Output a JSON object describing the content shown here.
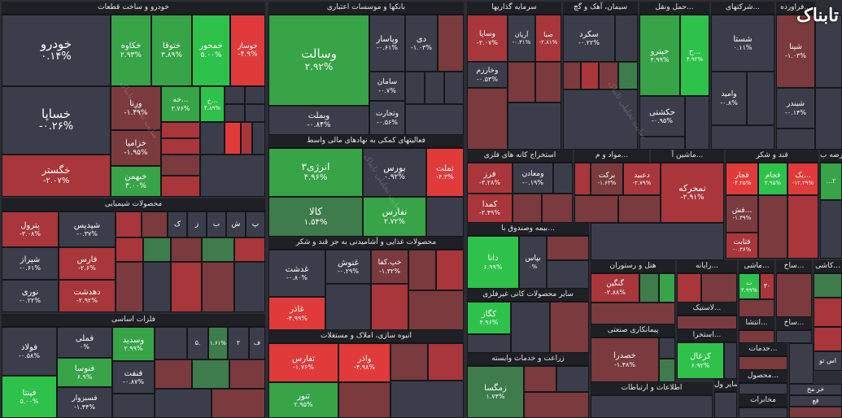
{
  "logo_text": "تابناک",
  "watermark": "سایت تحلیلی تابناک",
  "sectors": [
    {
      "id": "auto",
      "label": "خودرو و ساخت قطعات"
    },
    {
      "id": "banks",
      "label": "بانکها و موسسات اعتباری"
    },
    {
      "id": "invest",
      "label": "سرمایه گذاریها"
    },
    {
      "id": "cement",
      "label": "سیمان، آهک و گچ"
    },
    {
      "id": "transport",
      "label": "حمل ونقل..."
    },
    {
      "id": "holding",
      "label": "شرکتهای..."
    },
    {
      "id": "pharma",
      "label": "فراورده..."
    },
    {
      "id": "chem",
      "label": "محصولات شیمیایی"
    },
    {
      "id": "finaux",
      "label": "فعالیتهای کمکی به نهادهای مالی واسط"
    },
    {
      "id": "mining",
      "label": "استخراج کانه های فلزی"
    },
    {
      "id": "materials",
      "label": "مواد و م..."
    },
    {
      "id": "machinery",
      "label": "ماشین آ..."
    },
    {
      "id": "sugar",
      "label": "قند و شکر"
    },
    {
      "id": "supply",
      "label": "عرضه ب..."
    },
    {
      "id": "insurance",
      "label": "بیمه وصندوق با..."
    },
    {
      "id": "food",
      "label": "محصولات غذایی و آشامیدنی به جز قند و شکر"
    },
    {
      "id": "hotel",
      "label": "هتل و رستوران"
    },
    {
      "id": "it",
      "label": "رایانه..."
    },
    {
      "id": "machine2",
      "label": "ماشی..."
    },
    {
      "id": "build",
      "label": "ساخ..."
    },
    {
      "id": "kashi",
      "label": "کاشی..."
    },
    {
      "id": "basemetal",
      "label": "فلزات اساسی"
    },
    {
      "id": "nonmetal",
      "label": "سایر محصولات کانی غیرفلزی"
    },
    {
      "id": "contract",
      "label": "پیمانکاری صنعتی"
    },
    {
      "id": "tire",
      "label": "لاستیک..."
    },
    {
      "id": "misc1",
      "label": "انتشا..."
    },
    {
      "id": "misc2",
      "label": "ساخ..."
    },
    {
      "id": "realestate",
      "label": "انبوه سازی، املاک و مستغلات"
    },
    {
      "id": "agri",
      "label": "زراعت و خدمات وابسته"
    },
    {
      "id": "trade",
      "label": "استخرا..."
    },
    {
      "id": "services",
      "label": "خدمات..."
    },
    {
      "id": "products",
      "label": "محصول..."
    },
    {
      "id": "telecom",
      "label": "اطلاعات و ارتباطات"
    },
    {
      "id": "othertrade",
      "label": "سایر ول..."
    },
    {
      "id": "comm",
      "label": "مخابرات"
    }
  ],
  "symbols": [
    {
      "id": "khodro",
      "name": "خودرو",
      "pct": "۰.۱۴%"
    },
    {
      "id": "khakave",
      "name": "خکاوه",
      "pct": "۲.۹۳%"
    },
    {
      "id": "khtogha",
      "name": "ختوقا",
      "pct": "۳.۸۹%"
    },
    {
      "id": "khmehvar",
      "name": "خمحور",
      "pct": "۵.۰۰%"
    },
    {
      "id": "khosaz",
      "name": "خوساز",
      "pct": "-۴.۹%"
    },
    {
      "id": "khsapa",
      "name": "خساپا",
      "pct": "-۰.۲۶%"
    },
    {
      "id": "vorna",
      "name": "ورنا",
      "pct": "-۱.۴۹%"
    },
    {
      "id": "khzamia",
      "name": "خزامیا",
      "pct": "-۱.۹۵%"
    },
    {
      "id": "khgostar",
      "name": "خگستر",
      "pct": "-۲.۰۷%"
    },
    {
      "id": "khbahman",
      "name": "خبهمن",
      "pct": "۳.۰۰%"
    },
    {
      "id": "khe",
      "name": "خه...",
      "pct": "۳.۷۶%"
    },
    {
      "id": "kh2",
      "name": "خ...",
      "pct": "۴.۸۹%"
    },
    {
      "id": "vbmellat",
      "name": "وبملت",
      "pct": "-۰.۸۴%"
    },
    {
      "id": "vsalat",
      "name": "وسالت",
      "pct": "۲.۹۲%"
    },
    {
      "id": "vpasar",
      "name": "وپاسار",
      "pct": "-۰.۶۱%"
    },
    {
      "id": "saman",
      "name": "سامان",
      "pct": "-۰.۷%"
    },
    {
      "id": "vtejarat",
      "name": "وتجارت",
      "pct": "-۰.۵۶%"
    },
    {
      "id": "di",
      "name": "دی",
      "pct": "-۱.۰۳%"
    },
    {
      "id": "vsapa",
      "name": "وساپا",
      "pct": "-۲.۰۷%"
    },
    {
      "id": "arian",
      "name": "آریان",
      "pct": "-۰.۳۱%"
    },
    {
      "id": "saba",
      "name": "صبا",
      "pct": "-۲.۸۱%"
    },
    {
      "id": "vkharazm",
      "name": "وخارزم",
      "pct": "-۰.۵۳%"
    },
    {
      "id": "sekord",
      "name": "سکرد",
      "pct": "-۰.۲۲%"
    },
    {
      "id": "hipro",
      "name": "حپترو",
      "pct": "۴.۹۹%"
    },
    {
      "id": "hkeshti",
      "name": "حکشتی",
      "pct": "-۰.۹۵%"
    },
    {
      "id": "h2",
      "name": "ح...",
      "pct": "۴.۹۲%"
    },
    {
      "id": "shasta",
      "name": "شستا",
      "pct": "۰.۱۱%"
    },
    {
      "id": "vamid",
      "name": "وامید",
      "pct": "-۰.۸%"
    },
    {
      "id": "shepna",
      "name": "شپنا",
      "pct": "-۱.۰۳%"
    },
    {
      "id": "shbandar",
      "name": "شبندر",
      "pct": "-۰.۱۴%"
    },
    {
      "id": "shapdis",
      "name": "شپدیس",
      "pct": "-۰.۳۷%"
    },
    {
      "id": "petrol",
      "name": "پترول",
      "pct": "-۳.۰۸%"
    },
    {
      "id": "fares",
      "name": "فارس",
      "pct": "-۲.۶%"
    },
    {
      "id": "shiraz",
      "name": "شیراز",
      "pct": "-۰.۶۱%"
    },
    {
      "id": "dehdasht",
      "name": "دهدشت",
      "pct": "-۲.۹۲%"
    },
    {
      "id": "nori",
      "name": "نوری",
      "pct": "-۰.۲۲%"
    },
    {
      "id": "anerzhi",
      "name": "انرژی۳",
      "pct": "۴.۹۶%"
    },
    {
      "id": "bours",
      "name": "بورس",
      "pct": "۰.۹۲%"
    },
    {
      "id": "tamalt",
      "name": "تملت",
      "pct": "-۴.۳%"
    },
    {
      "id": "kala",
      "name": "کالا",
      "pct": "۱.۵۴%"
    },
    {
      "id": "tafaris",
      "name": "تفارس",
      "pct": "۲.۷۲%"
    },
    {
      "id": "fars",
      "name": "فرز",
      "pct": "-۳.۲۸%"
    },
    {
      "id": "vmaaden",
      "name": "ومعادن",
      "pct": "-۰.۱۹%"
    },
    {
      "id": "kamdima",
      "name": "کمدا",
      "pct": "-۲.۴۹%"
    },
    {
      "id": "barkat",
      "name": "برکت",
      "pct": "-۱.۶۳%"
    },
    {
      "id": "dabid",
      "name": "دعبید",
      "pct": "-۲.۷۹%"
    },
    {
      "id": "tamhrake",
      "name": "تمحرکه",
      "pct": "-۲.۹۱%"
    },
    {
      "id": "ghajar",
      "name": "قجار",
      "pct": "-۴.۲۵%"
    },
    {
      "id": "ghjam",
      "name": "قجام",
      "pct": "۲.۹۵%"
    },
    {
      "id": "ghshi",
      "name": "قش...",
      "pct": "-۱.۳۹%"
    },
    {
      "id": "ghthabet",
      "name": "قثابت",
      "pct": "-۰.۳۶%"
    },
    {
      "id": "bak",
      "name": "بک...",
      "pct": "-۱۲.۲۹%"
    },
    {
      "id": "dana",
      "name": "دانا",
      "pct": "۶.۹۹%"
    },
    {
      "id": "bipas",
      "name": "بپاس",
      "pct": "۰%"
    },
    {
      "id": "ghdasht",
      "name": "غدشت",
      "pct": "-۰.۸۰%"
    },
    {
      "id": "ghonosh",
      "name": "غنوش",
      "pct": "-۰.۲۹%"
    },
    {
      "id": "khkafa",
      "name": "خپ.کفا",
      "pct": "-۱.۳۲%"
    },
    {
      "id": "ghazar",
      "name": "غاذر",
      "pct": "-۴.۹۹%"
    },
    {
      "id": "kavir",
      "name": "کگاز",
      "pct": "۴.۹۶%"
    },
    {
      "id": "gangin",
      "name": "گنگین",
      "pct": "-۲.۸۸%"
    },
    {
      "id": "khsara",
      "name": "خصدرا",
      "pct": "-۱.۴۸%"
    },
    {
      "id": "kazhal",
      "name": "کزغال",
      "pct": "۶.۹۲%"
    },
    {
      "id": "zamgsa",
      "name": "زمگسا",
      "pct": "۱.۷۴%"
    },
    {
      "id": "thfars",
      "name": "ثفارس",
      "pct": "-۱.۷۶%"
    },
    {
      "id": "vaazar",
      "name": "واذر",
      "pct": "-۴.۹۸%"
    },
    {
      "id": "thnor",
      "name": "ثنور",
      "pct": "۲.۹۵%"
    },
    {
      "id": "foolad",
      "name": "فولاد",
      "pct": "-۰.۵۸%"
    },
    {
      "id": "felli",
      "name": "فملی",
      "pct": "۰%"
    },
    {
      "id": "vasdid",
      "name": "وسدید",
      "pct": "۲.۹۹%"
    },
    {
      "id": "fanavaran",
      "name": "فنوسا",
      "pct": "۶.۹%"
    },
    {
      "id": "fonfat",
      "name": "فنفت",
      "pct": "-۰.۸۷%"
    },
    {
      "id": "fsbozvar",
      "name": "فسبزوار",
      "pct": "-۱.۴۴%"
    },
    {
      "id": "fitna",
      "name": "فینتا",
      "pct": "۵.۰۰%"
    }
  ],
  "small": {
    "t1": "ب",
    "t2": "ش",
    "t3": "پ",
    "t4": "ک",
    "t5": "ز",
    "t6": "۵...",
    "bpct": "۴.۹۹%",
    "b2": "۳۰",
    "asto": "اس تو",
    "khram": "خر مح",
    "fa": "فع",
    "m1": "...۲",
    "m2": "...۲",
    "l1": "لآ...",
    "n1": "۱.۶۱%",
    "a1": "۵.",
    "a2": "۲",
    "d1": "ف"
  }
}
